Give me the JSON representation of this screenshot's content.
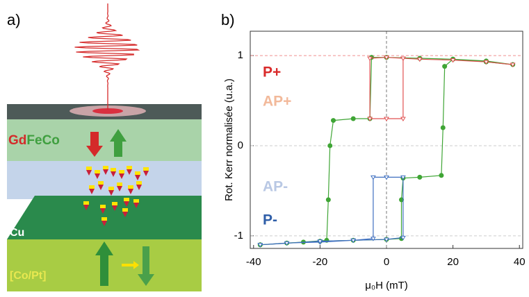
{
  "panel_a": {
    "label": "a)",
    "layers": {
      "gd": "Gd",
      "fefeco": "FeCo",
      "cu": "Cu",
      "copt": "[Co/Pt]"
    }
  },
  "chart_data": {
    "type": "line",
    "panel_label": "b)",
    "x_label": "μ₀H (mT)",
    "y_label": "Rot. Kerr normalisée (u.a.)",
    "xlim": [
      -41,
      41
    ],
    "ylim": [
      -1.14,
      1.27
    ],
    "xticks": [
      -40,
      -20,
      0,
      20,
      40
    ],
    "yticks": [
      -1,
      0,
      1
    ],
    "grid": true,
    "annotations": [
      {
        "text": "P+",
        "color": "#d92b2b"
      },
      {
        "text": "AP+",
        "color": "#f2b99a"
      },
      {
        "text": "AP-",
        "color": "#b9c8e4"
      },
      {
        "text": "P-",
        "color": "#2f5ea8"
      }
    ],
    "series": [
      {
        "name": "green",
        "color": "#3fa535",
        "marker": "circle",
        "x": [
          -38,
          -30,
          -20,
          -10,
          0,
          4.5,
          4.5,
          5,
          10,
          16.5,
          17,
          17.5,
          20,
          30,
          38,
          30,
          20,
          10,
          0,
          -4.5,
          -5,
          -10,
          -16,
          -17,
          -17.5,
          -18,
          -25,
          -38
        ],
        "values": [
          -1.1,
          -1.08,
          -1.06,
          -1.05,
          -1.04,
          -1.03,
          -0.6,
          -0.36,
          -0.35,
          -0.33,
          0.2,
          0.88,
          0.96,
          0.93,
          0.9,
          0.94,
          0.96,
          0.97,
          0.98,
          0.98,
          0.3,
          0.3,
          0.28,
          0,
          -0.6,
          -1.05,
          -1.07,
          -1.1
        ]
      },
      {
        "name": "red",
        "color": "#e05050",
        "marker": "triangle",
        "x": [
          38,
          30,
          20,
          10,
          5,
          5,
          0,
          -5,
          -5,
          0,
          5
        ],
        "values": [
          0.9,
          0.93,
          0.95,
          0.96,
          0.97,
          0.3,
          0.3,
          0.3,
          0.97,
          0.98,
          0.97
        ]
      },
      {
        "name": "blue",
        "color": "#3f6fc0",
        "marker": "triangle",
        "x": [
          -38,
          -30,
          -20,
          -10,
          0,
          5,
          5,
          0,
          -4,
          -4,
          -10,
          -20,
          -38
        ],
        "values": [
          -1.1,
          -1.08,
          -1.07,
          -1.05,
          -1.04,
          -1.02,
          -0.35,
          -0.35,
          -0.35,
          -1.03,
          -1.05,
          -1.06,
          -1.1
        ]
      }
    ]
  }
}
